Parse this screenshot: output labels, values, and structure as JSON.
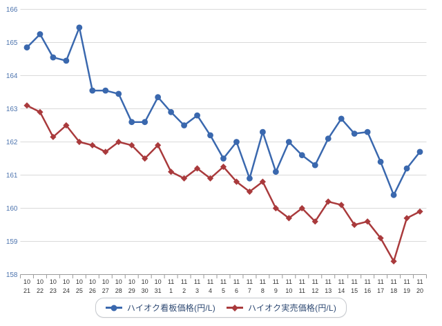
{
  "colors": {
    "series_signboard": "#3a68ae",
    "series_actual": "#a93a3c",
    "gridline": "#d9d9d9",
    "axis_line": "#9a9a9a",
    "y_tick_label": "#4d74ae",
    "x_tick_label": "#333333",
    "legend_text": "#2f4a73",
    "legend_border": "#c6c9ce",
    "background": "#ffffff"
  },
  "legend": {
    "items": [
      {
        "label": "ハイオク看板価格(円/L)",
        "marker": "circle",
        "color": "#3a68ae"
      },
      {
        "label": "ハイオク実売価格(円/L)",
        "marker": "diamond",
        "color": "#a93a3c"
      }
    ]
  },
  "chart_data": {
    "type": "line",
    "title": "",
    "xlabel": "",
    "ylabel": "",
    "ylim": [
      158,
      166
    ],
    "ytick_step": 1,
    "ytick_labels": [
      "158",
      "159",
      "160",
      "161",
      "162",
      "163",
      "164",
      "165",
      "166"
    ],
    "grid": "horizontal",
    "legend_position": "bottom-center",
    "categories": [
      "10/21",
      "10/22",
      "10/23",
      "10/24",
      "10/25",
      "10/26",
      "10/27",
      "10/28",
      "10/29",
      "10/30",
      "10/31",
      "11/1",
      "11/2",
      "11/3",
      "11/4",
      "11/5",
      "11/6",
      "11/7",
      "11/8",
      "11/9",
      "11/10",
      "11/11",
      "11/12",
      "11/13",
      "11/14",
      "11/15",
      "11/16",
      "11/17",
      "11/18",
      "11/19",
      "11/20"
    ],
    "series": [
      {
        "name": "ハイオク看板価格(円/L)",
        "marker": "circle",
        "color": "#3a68ae",
        "values": [
          164.85,
          165.25,
          164.55,
          164.45,
          165.45,
          163.55,
          163.55,
          163.45,
          162.6,
          162.6,
          163.35,
          162.9,
          162.5,
          162.8,
          162.2,
          161.5,
          162.0,
          160.9,
          162.3,
          161.1,
          162.0,
          161.6,
          161.3,
          162.1,
          162.7,
          162.25,
          162.3,
          161.4,
          160.4,
          161.2,
          161.7
        ]
      },
      {
        "name": "ハイオク実売価格(円/L)",
        "marker": "diamond",
        "color": "#a93a3c",
        "values": [
          163.1,
          162.9,
          162.15,
          162.5,
          162.0,
          161.9,
          161.7,
          162.0,
          161.9,
          161.5,
          161.9,
          161.1,
          160.9,
          161.2,
          160.9,
          161.25,
          160.8,
          160.5,
          160.8,
          160.0,
          159.7,
          160.0,
          159.6,
          160.2,
          160.1,
          159.5,
          159.6,
          159.1,
          158.4,
          159.7,
          159.9
        ]
      }
    ]
  }
}
